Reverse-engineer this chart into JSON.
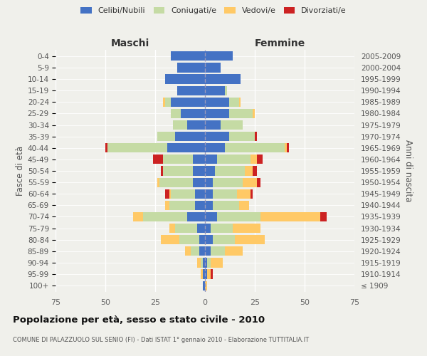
{
  "age_groups": [
    "100+",
    "95-99",
    "90-94",
    "85-89",
    "80-84",
    "75-79",
    "70-74",
    "65-69",
    "60-64",
    "55-59",
    "50-54",
    "45-49",
    "40-44",
    "35-39",
    "30-34",
    "25-29",
    "20-24",
    "15-19",
    "10-14",
    "5-9",
    "0-4"
  ],
  "birth_years": [
    "≤ 1909",
    "1910-1914",
    "1915-1919",
    "1920-1924",
    "1925-1929",
    "1930-1934",
    "1935-1939",
    "1940-1944",
    "1945-1949",
    "1950-1954",
    "1955-1959",
    "1960-1964",
    "1965-1969",
    "1970-1974",
    "1975-1979",
    "1980-1984",
    "1985-1989",
    "1990-1994",
    "1995-1999",
    "2000-2004",
    "2005-2009"
  ],
  "males_celibi": [
    1,
    1,
    1,
    3,
    3,
    4,
    9,
    5,
    5,
    6,
    6,
    6,
    19,
    15,
    9,
    12,
    17,
    14,
    20,
    14,
    17
  ],
  "males_coniugati": [
    0,
    0,
    1,
    4,
    10,
    11,
    22,
    13,
    12,
    17,
    15,
    15,
    30,
    9,
    7,
    5,
    3,
    0,
    0,
    0,
    0
  ],
  "males_vedovi": [
    0,
    1,
    2,
    3,
    9,
    3,
    5,
    2,
    1,
    1,
    0,
    0,
    0,
    0,
    0,
    0,
    1,
    0,
    0,
    0,
    0
  ],
  "males_divorziati": [
    0,
    0,
    0,
    0,
    0,
    0,
    0,
    0,
    2,
    0,
    1,
    5,
    1,
    0,
    0,
    0,
    0,
    0,
    0,
    0,
    0
  ],
  "females_nubili": [
    0,
    1,
    1,
    3,
    4,
    3,
    6,
    4,
    4,
    4,
    5,
    6,
    10,
    12,
    8,
    12,
    12,
    10,
    18,
    8,
    14
  ],
  "females_coniugate": [
    0,
    0,
    2,
    7,
    11,
    11,
    22,
    13,
    12,
    15,
    15,
    17,
    30,
    13,
    11,
    12,
    5,
    1,
    0,
    0,
    0
  ],
  "females_vedove": [
    1,
    2,
    6,
    9,
    15,
    14,
    30,
    5,
    7,
    7,
    4,
    3,
    1,
    0,
    0,
    1,
    1,
    0,
    0,
    0,
    0
  ],
  "females_divorziate": [
    0,
    1,
    0,
    0,
    0,
    0,
    3,
    0,
    1,
    2,
    2,
    3,
    1,
    1,
    0,
    0,
    0,
    0,
    0,
    0,
    0
  ],
  "color_celibi": "#4472c4",
  "color_coniugati": "#c5dba4",
  "color_vedovi": "#ffc966",
  "color_divorziati": "#cc2222",
  "xlim": 75,
  "title": "Popolazione per età, sesso e stato civile - 2010",
  "subtitle": "COMUNE DI PALAZZUOLO SUL SENIO (FI) - Dati ISTAT 1° gennaio 2010 - Elaborazione TUTTITALIA.IT",
  "ylabel_left": "Fasce di età",
  "ylabel_right": "Anni di nascita",
  "label_maschi": "Maschi",
  "label_femmine": "Femmine",
  "legend_labels": [
    "Celibi/Nubili",
    "Coniugati/e",
    "Vedovi/e",
    "Divorziati/e"
  ],
  "bg_color": "#f0f0eb",
  "bar_height": 0.82
}
